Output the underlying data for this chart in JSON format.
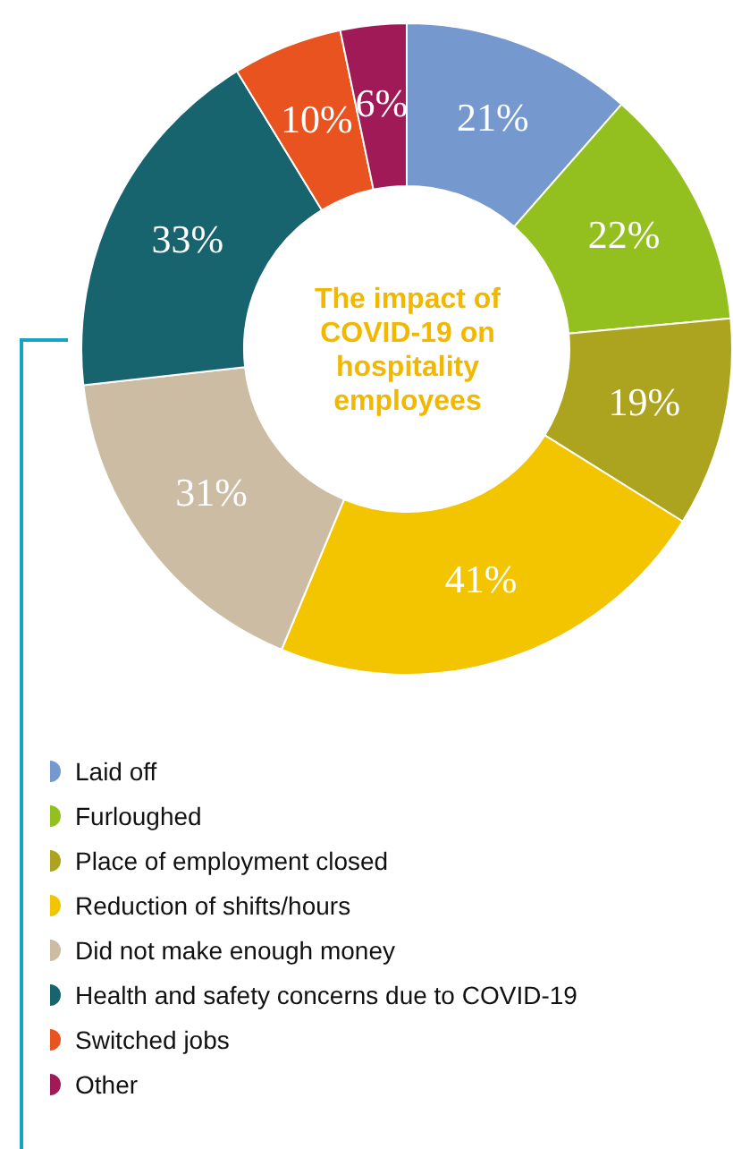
{
  "chart_data": {
    "type": "donut",
    "title": "The impact of COVID-19 on hospitality employees",
    "categories": [
      "Laid off",
      "Furloughed",
      "Place of employment closed",
      "Reduction of shifts/hours",
      "Did not make enough money",
      "Health and safety concerns due to COVID-19",
      "Switched jobs",
      "Other"
    ],
    "values": [
      21,
      22,
      19,
      41,
      31,
      33,
      10,
      6
    ],
    "colors": [
      "#7599cf",
      "#93c01f",
      "#aca31e",
      "#f2c500",
      "#cbbca3",
      "#17636e",
      "#e8531f",
      "#a01a58"
    ],
    "value_labels": [
      "21%",
      "22%",
      "19%",
      "41%",
      "31%",
      "33%",
      "10%",
      "6%"
    ],
    "legend": "bottom left"
  }
}
